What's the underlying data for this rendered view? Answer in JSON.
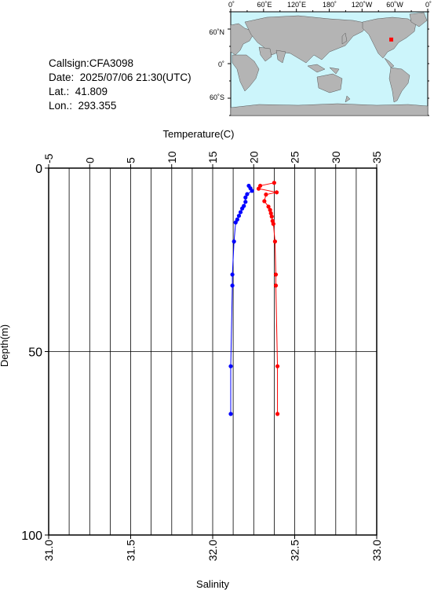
{
  "info": {
    "callsign": "Callsign:CFA3098",
    "date": "Date:  2025/07/06 21:30(UTC)",
    "lat": "Lat.:  41.809",
    "lon": "Lon.:  293.355"
  },
  "map": {
    "top_ticks": [
      "0˚",
      "60˚E",
      "120˚E",
      "180˚",
      "120˚W",
      "60˚W",
      "0˚"
    ],
    "left_ticks": [
      "60˚N",
      "0˚",
      "60˚S"
    ],
    "station": {
      "lon": 293.355,
      "lat": 41.809
    },
    "colors": {
      "ocean": "#ccf5fb",
      "land": "#b4b4b4",
      "marker": "#ff0000"
    }
  },
  "chart_data": {
    "type": "line",
    "title": "",
    "x_top_label": "Temperature(C)",
    "x_bottom_label": "Salinity",
    "ylabel": "Depth(m)",
    "temperature_ticks": [
      "-5",
      "0",
      "5",
      "10",
      "15",
      "20",
      "25",
      "30",
      "35"
    ],
    "salinity_ticks": [
      "31.0",
      "31.5",
      "32.0",
      "32.5",
      "33.0"
    ],
    "depth_ticks": [
      "0",
      "50",
      "100"
    ],
    "temperature_range": [
      -5,
      35
    ],
    "salinity_range": [
      31.0,
      33.0
    ],
    "depth_range": [
      0,
      100
    ],
    "grid": true,
    "series": [
      {
        "name": "Salinity",
        "color": "#0000ff",
        "depth": [
          4.8,
          5.5,
          6.2,
          7.1,
          8.0,
          9.2,
          10.3,
          11.0,
          12.0,
          13.0,
          14.0,
          14.8,
          20.0,
          29.0,
          32.0,
          54.0,
          67.0
        ],
        "values": [
          32.22,
          32.23,
          32.24,
          32.21,
          32.2,
          32.2,
          32.19,
          32.18,
          32.17,
          32.16,
          32.15,
          32.14,
          32.13,
          32.12,
          32.12,
          32.11,
          32.11
        ]
      },
      {
        "name": "Temperature",
        "color": "#ff0000",
        "depth": [
          4.0,
          4.8,
          5.6,
          6.6,
          7.2,
          9.0,
          10.5,
          11.4,
          12.3,
          13.2,
          14.4,
          15.2,
          20.0,
          29.0,
          32.0,
          54.0,
          67.0
        ],
        "values": [
          22.5,
          20.8,
          20.6,
          22.8,
          21.5,
          21.3,
          21.8,
          22.0,
          22.1,
          22.2,
          22.3,
          22.4,
          22.6,
          22.7,
          22.7,
          22.9,
          22.9
        ]
      }
    ]
  }
}
